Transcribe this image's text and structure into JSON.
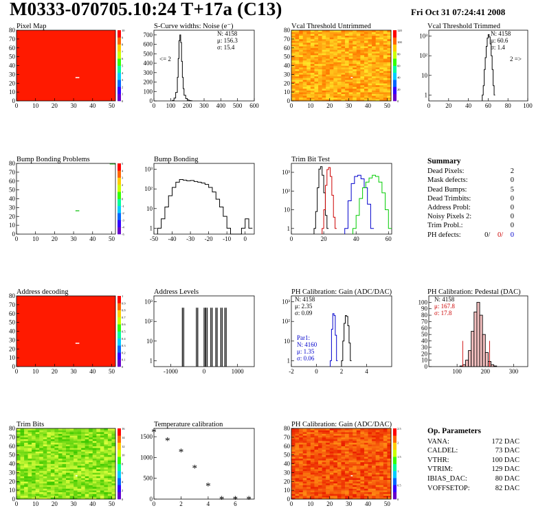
{
  "header": {
    "title": "M0333-070705.10:24 T+17a (C13)",
    "date": "Fri Oct 31 07:24:41 2008"
  },
  "colors": {
    "map_red": "#ff1a00",
    "hist_line": "#000000",
    "red_series": "#cc0000",
    "blue_series": "#0000cc",
    "green_series": "#00cc00"
  },
  "chart_data": [
    {
      "id": "pixel-map",
      "type": "heatmap",
      "title": "Pixel Map",
      "xlim": [
        0,
        52
      ],
      "ylim": [
        0,
        80
      ],
      "xticks": [
        0,
        10,
        20,
        30,
        40,
        50
      ],
      "yticks": [
        0,
        10,
        20,
        30,
        40,
        50,
        60,
        70,
        80
      ],
      "palette_ticks": [
        0,
        1,
        2,
        3,
        4,
        5,
        6,
        7,
        8,
        9,
        10
      ],
      "fill": "uniform_max",
      "special_pixels": [
        [
          31,
          26
        ],
        [
          32,
          26
        ]
      ]
    },
    {
      "id": "scurve-widths",
      "type": "bar",
      "title": "S-Curve widths: Noise (e⁻)",
      "xlim": [
        0,
        600
      ],
      "ylim": [
        0,
        750
      ],
      "xticks": [
        0,
        100,
        200,
        300,
        400,
        500,
        600
      ],
      "yticks": [
        0,
        100,
        200,
        300,
        400,
        500,
        600,
        700
      ],
      "stats": [
        "N: 4158",
        "μ: 156.3",
        "σ: 15.4"
      ],
      "annotation": "<= 2",
      "x": [
        110,
        120,
        130,
        140,
        145,
        150,
        155,
        160,
        165,
        170,
        175,
        180,
        190,
        200,
        210,
        220
      ],
      "values": [
        5,
        30,
        90,
        250,
        450,
        640,
        700,
        620,
        420,
        250,
        130,
        60,
        25,
        10,
        4,
        2
      ]
    },
    {
      "id": "vcal-untrimmed",
      "type": "heatmap",
      "title": "Vcal Threshold Untrimmed",
      "xlim": [
        0,
        52
      ],
      "ylim": [
        0,
        80
      ],
      "xticks": [
        0,
        10,
        20,
        30,
        40,
        50
      ],
      "yticks": [
        0,
        10,
        20,
        30,
        40,
        50,
        60,
        70,
        80
      ],
      "palette_ticks": [
        0,
        20,
        40,
        60,
        80,
        100,
        120
      ],
      "fill": "noise_orange",
      "special_pixels": [
        [
          31,
          26
        ]
      ]
    },
    {
      "id": "vcal-trimmed",
      "type": "bar",
      "title": "Vcal Threshold Trimmed",
      "log": true,
      "xlim": [
        0,
        100
      ],
      "ylim_log": [
        0.5,
        2000
      ],
      "xticks": [
        0,
        20,
        40,
        60,
        80,
        100
      ],
      "yticks": [
        1,
        10,
        100,
        1000
      ],
      "stats": [
        "N: 4158",
        "μ: 60.6",
        "σ:  1.4"
      ],
      "annotation": "2 =>",
      "x": [
        54,
        55,
        56,
        57,
        58,
        59,
        60,
        61,
        62,
        63,
        64,
        65,
        66
      ],
      "values": [
        1,
        3,
        20,
        80,
        300,
        800,
        1200,
        900,
        400,
        100,
        20,
        3,
        1
      ]
    },
    {
      "id": "bump-problems",
      "type": "heatmap",
      "title": "Bump Bonding Problems",
      "xlim": [
        0,
        52
      ],
      "ylim": [
        0,
        80
      ],
      "xticks": [
        0,
        10,
        20,
        30,
        40,
        50
      ],
      "yticks": [
        0,
        10,
        20,
        30,
        40,
        50,
        60,
        70,
        80
      ],
      "palette_ticks": [
        -5,
        -4,
        -3,
        -2,
        -1,
        0,
        1,
        2,
        3,
        4,
        5
      ],
      "fill": "white",
      "special_pixels": [
        [
          31,
          26
        ],
        [
          32,
          26
        ],
        [
          49,
          79
        ],
        [
          50,
          79
        ],
        [
          51,
          79
        ]
      ]
    },
    {
      "id": "bump-bonding",
      "type": "bar",
      "title": "Bump Bonding",
      "log": true,
      "xlim": [
        -50,
        5
      ],
      "ylim_log": [
        0.5,
        2000
      ],
      "xticks": [
        -50,
        -40,
        -30,
        -20,
        -10,
        0
      ],
      "yticks": [
        1,
        10,
        100,
        1000
      ],
      "x": [
        -48,
        -46,
        -44,
        -42,
        -40,
        -38,
        -36,
        -34,
        -32,
        -30,
        -28,
        -26,
        -24,
        -22,
        -20,
        -18,
        -16,
        -14,
        -12,
        -10,
        -8,
        -6,
        -4,
        -2,
        0,
        2
      ],
      "values": [
        1,
        3,
        12,
        45,
        120,
        220,
        300,
        280,
        260,
        270,
        240,
        220,
        200,
        170,
        120,
        70,
        30,
        12,
        4,
        1,
        0,
        0,
        0,
        1,
        3,
        1
      ]
    },
    {
      "id": "trim-bit-test",
      "type": "line",
      "title": "Trim Bit Test",
      "log": true,
      "xlim": [
        0,
        62
      ],
      "ylim_log": [
        0.5,
        3000
      ],
      "xticks": [
        0,
        20,
        40,
        60
      ],
      "yticks": [
        1,
        10,
        100,
        1000
      ],
      "series": [
        {
          "color": "#000000",
          "x": [
            14,
            15,
            16,
            17,
            18,
            19,
            20,
            21,
            22
          ],
          "values": [
            1,
            8,
            150,
            1500,
            2000,
            700,
            80,
            5,
            1
          ]
        },
        {
          "color": "#cc0000",
          "x": [
            19,
            20,
            21,
            22,
            23,
            24,
            25,
            26,
            27
          ],
          "values": [
            1,
            10,
            200,
            1400,
            1800,
            600,
            60,
            4,
            1
          ]
        },
        {
          "color": "#0000cc",
          "x": [
            33,
            35,
            37,
            39,
            41,
            43,
            45,
            47,
            49
          ],
          "values": [
            1,
            30,
            250,
            600,
            700,
            450,
            150,
            20,
            1
          ]
        },
        {
          "color": "#00cc00",
          "x": [
            38,
            40,
            42,
            44,
            46,
            48,
            50,
            52,
            54,
            56,
            58,
            60
          ],
          "values": [
            1,
            5,
            40,
            150,
            300,
            500,
            700,
            600,
            300,
            80,
            10,
            1
          ]
        }
      ]
    },
    {
      "id": "address-decoding",
      "type": "heatmap",
      "title": "Address decoding",
      "xlim": [
        0,
        52
      ],
      "ylim": [
        0,
        80
      ],
      "xticks": [
        0,
        10,
        20,
        30,
        40,
        50
      ],
      "yticks": [
        0,
        10,
        20,
        30,
        40,
        50,
        60,
        70,
        80
      ],
      "palette_ticks": [
        0,
        0.1,
        0.2,
        0.3,
        0.4,
        0.5,
        0.6,
        0.7,
        0.8,
        0.9,
        1
      ],
      "fill": "uniform_max",
      "special_pixels": [
        [
          31,
          26
        ],
        [
          32,
          26
        ]
      ]
    },
    {
      "id": "address-levels",
      "type": "bar",
      "title": "Address Levels",
      "log": true,
      "xlim": [
        -1500,
        1500
      ],
      "ylim_log": [
        0.5,
        2000
      ],
      "xticks": [
        -1000,
        0,
        1000
      ],
      "yticks": [
        1,
        10,
        100,
        1000
      ],
      "x": [
        -700,
        -650,
        -280,
        -230,
        -50,
        0,
        50,
        150,
        200,
        300,
        350,
        450,
        500,
        580,
        620
      ],
      "values": [
        1,
        500,
        1,
        500,
        1,
        500,
        500,
        1,
        500,
        1,
        500,
        1,
        500,
        1,
        500
      ]
    },
    {
      "id": "ph-gain",
      "type": "bar",
      "title": "PH Calibration: Gain (ADC/DAC)",
      "log": true,
      "xlim": [
        -2,
        6
      ],
      "ylim_log": [
        0.5,
        2000
      ],
      "xticks": [
        -2,
        0,
        2,
        4
      ],
      "yticks": [
        1,
        10,
        100,
        1000
      ],
      "stats": [
        "N: 4158",
        "μ: 2.35",
        "σ: 0.09"
      ],
      "stats2": [
        "Par1:",
        "N: 4160",
        "μ: 1.35",
        "σ: 0.06"
      ],
      "series": [
        {
          "color": "#000000",
          "x": [
            2.0,
            2.1,
            2.2,
            2.3,
            2.4,
            2.5,
            2.6,
            2.7
          ],
          "values": [
            1,
            10,
            80,
            200,
            180,
            60,
            8,
            1
          ]
        },
        {
          "color": "#0000cc",
          "x": [
            1.1,
            1.2,
            1.3,
            1.4,
            1.5,
            1.6
          ],
          "values": [
            1,
            40,
            250,
            200,
            20,
            1
          ]
        }
      ]
    },
    {
      "id": "ph-pedestal",
      "type": "bar",
      "title": "PH Calibration: Pedestal (DAC)",
      "xlim": [
        0,
        350
      ],
      "ylim": [
        0,
        110
      ],
      "xticks": [
        100,
        200,
        300
      ],
      "yticks": [
        0,
        10,
        20,
        30,
        40,
        50,
        60,
        70,
        80,
        90,
        100
      ],
      "stats": [
        "N: 4158",
        "μ: 167.8",
        "σ: 17.8"
      ],
      "cut_lines": [
        120,
        215
      ],
      "x": [
        110,
        120,
        130,
        140,
        150,
        160,
        170,
        180,
        190,
        200,
        210,
        220,
        230
      ],
      "values": [
        1,
        3,
        10,
        25,
        55,
        85,
        100,
        80,
        50,
        22,
        8,
        3,
        1
      ]
    },
    {
      "id": "trim-bits",
      "type": "heatmap",
      "title": "Trim Bits",
      "xlim": [
        0,
        52
      ],
      "ylim": [
        0,
        80
      ],
      "xticks": [
        0,
        10,
        20,
        30,
        40,
        50
      ],
      "yticks": [
        0,
        10,
        20,
        30,
        40,
        50,
        60,
        70,
        80
      ],
      "palette_ticks": [
        0,
        2,
        4,
        6,
        8,
        10,
        12,
        14,
        16
      ],
      "fill": "noise_green",
      "special_pixels": [
        [
          31,
          26
        ]
      ]
    },
    {
      "id": "temperature-calibration",
      "type": "scatter",
      "title": "Temperature calibration",
      "xlim": [
        0,
        7.4
      ],
      "ylim": [
        0,
        1700
      ],
      "xticks": [
        0,
        2,
        4,
        6
      ],
      "yticks": [
        0,
        500,
        1000,
        1500
      ],
      "x": [
        0,
        1,
        2,
        3,
        4,
        5,
        6,
        7
      ],
      "values": [
        1620,
        1410,
        1140,
        750,
        320,
        0,
        0,
        0
      ]
    },
    {
      "id": "ph-gain-map",
      "type": "heatmap",
      "title": "PH Calibration: Gain (ADC/DAC)",
      "xlim": [
        0,
        52
      ],
      "ylim": [
        0,
        80
      ],
      "xticks": [
        0,
        10,
        20,
        30,
        40,
        50
      ],
      "yticks": [
        0,
        10,
        20,
        30,
        40,
        50,
        60,
        70,
        80
      ],
      "palette_ticks": [
        0,
        0.5,
        1,
        1.5,
        2,
        2.5
      ],
      "fill": "noise_red",
      "special_pixels": [
        [
          31,
          26
        ]
      ]
    }
  ],
  "summary": {
    "title": "Summary",
    "rows": [
      {
        "label": "Dead Pixels:",
        "value": "2"
      },
      {
        "label": "Mask defects:",
        "value": "0"
      },
      {
        "label": "Dead Bumps:",
        "value": "5"
      },
      {
        "label": "Dead Trimbits:",
        "value": "0"
      },
      {
        "label": "Address Probl:",
        "value": "0"
      },
      {
        "label": "Noisy Pixels 2:",
        "value": "0"
      },
      {
        "label": "Trim Probl.:",
        "value": "0"
      }
    ],
    "ph_label": "PH defects:",
    "ph_values": [
      "0/",
      "0/",
      "0"
    ]
  },
  "op_parameters": {
    "title": "Op. Parameters",
    "rows": [
      {
        "label": "VANA:",
        "value": "172 DAC"
      },
      {
        "label": "CALDEL:",
        "value": "73 DAC"
      },
      {
        "label": "VTHR:",
        "value": "100 DAC"
      },
      {
        "label": "VTRIM:",
        "value": "129 DAC"
      },
      {
        "label": "IBIAS_DAC:",
        "value": "80 DAC"
      },
      {
        "label": "VOFFSETOP:",
        "value": "82 DAC"
      }
    ]
  }
}
